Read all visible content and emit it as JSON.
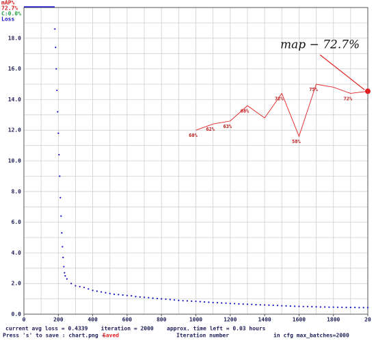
{
  "chart_data": {
    "type": "line",
    "xlabel": "Iteration number",
    "xlim": [
      0,
      2000
    ],
    "xticks": [
      0,
      200,
      400,
      600,
      800,
      1000,
      1200,
      1400,
      1600,
      1800,
      {
        "value": 2000,
        "label": "20"
      }
    ],
    "ylim": [
      0,
      20
    ],
    "yticks": [
      {
        "value": 0,
        "label": "0.0"
      },
      {
        "value": 2,
        "label": "2.0"
      },
      {
        "value": 4,
        "label": "4.0"
      },
      {
        "value": 6,
        "label": "6.0"
      },
      {
        "value": 8,
        "label": "8.0"
      },
      {
        "value": 10,
        "label": "10.0"
      },
      {
        "value": 12,
        "label": "12.0"
      },
      {
        "value": 14,
        "label": "14.0"
      },
      {
        "value": 16,
        "label": "16.0"
      },
      {
        "value": 18,
        "label": "18.0"
      }
    ],
    "y2lim": [
      0,
      100
    ],
    "grid": true,
    "series": [
      {
        "name": "Loss",
        "color": "#1010c8",
        "axis": "y",
        "x": [
          180,
          184,
          188,
          192,
          196,
          200,
          204,
          208,
          212,
          216,
          220,
          224,
          228,
          232,
          236,
          240,
          250,
          275,
          300,
          325,
          350,
          375,
          400,
          425,
          450,
          475,
          500,
          525,
          550,
          575,
          600,
          625,
          650,
          675,
          700,
          725,
          750,
          775,
          800,
          825,
          850,
          875,
          900,
          925,
          950,
          975,
          1000,
          1025,
          1050,
          1075,
          1100,
          1125,
          1150,
          1175,
          1200,
          1225,
          1250,
          1275,
          1300,
          1325,
          1350,
          1375,
          1400,
          1425,
          1450,
          1475,
          1500,
          1525,
          1550,
          1575,
          1600,
          1625,
          1650,
          1675,
          1700,
          1725,
          1750,
          1775,
          1800,
          1825,
          1850,
          1875,
          1900,
          1925,
          1950,
          1975,
          2000
        ],
        "values": [
          18.6,
          17.4,
          16.0,
          14.6,
          13.2,
          11.8,
          10.4,
          9.0,
          7.6,
          6.4,
          5.3,
          4.4,
          3.7,
          3.1,
          2.7,
          2.5,
          2.3,
          2.0,
          1.85,
          1.8,
          1.75,
          1.65,
          1.55,
          1.5,
          1.45,
          1.4,
          1.35,
          1.3,
          1.28,
          1.25,
          1.22,
          1.2,
          1.15,
          1.12,
          1.1,
          1.08,
          1.05,
          1.02,
          1.0,
          0.98,
          0.96,
          0.93,
          0.9,
          0.88,
          0.87,
          0.85,
          0.84,
          0.82,
          0.8,
          0.78,
          0.76,
          0.75,
          0.73,
          0.72,
          0.7,
          0.69,
          0.67,
          0.66,
          0.65,
          0.64,
          0.62,
          0.61,
          0.6,
          0.59,
          0.58,
          0.57,
          0.55,
          0.54,
          0.53,
          0.52,
          0.51,
          0.5,
          0.5,
          0.49,
          0.48,
          0.47,
          0.47,
          0.46,
          0.46,
          0.45,
          0.45,
          0.44,
          0.44,
          0.44,
          0.43,
          0.43,
          0.43
        ]
      },
      {
        "name": "mAP%",
        "color": "#e02020",
        "axis": "y2",
        "x": [
          1000,
          1100,
          1200,
          1300,
          1400,
          1500,
          1600,
          1700,
          1800,
          1900,
          2000
        ],
        "values": [
          60,
          62,
          63,
          68,
          64,
          72,
          58,
          75,
          74,
          72,
          72.7
        ],
        "value_labels": [
          "60%",
          "62%",
          "63%",
          "68%",
          null,
          "72%",
          "58%",
          "75%",
          null,
          "72%",
          null
        ]
      }
    ],
    "current_map": "72.7%",
    "conf": "C:0.0%",
    "annotation": "map − 72.7%",
    "status": "current avg loss = 0.4339    iteration = 2000    approx. time left = 0.03 hours",
    "save_hint": "Press 's' to save : chart.png -",
    "save_state": "Saved",
    "cfg": "in cfg max_batches=2000"
  }
}
